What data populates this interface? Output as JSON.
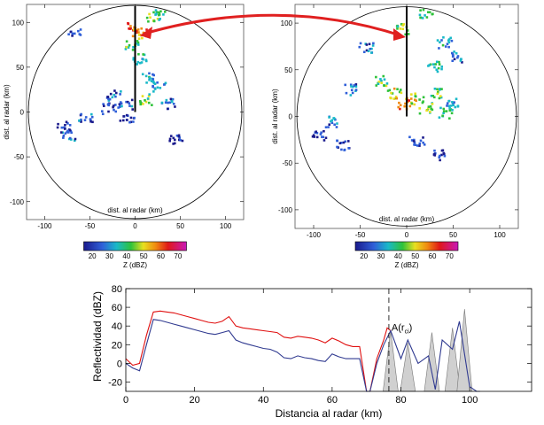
{
  "chart_data": [
    {
      "type": "heatmap",
      "panel": "ppi-left",
      "xlabel": "dist. al radar (km)",
      "ylabel": "dist. al radar (km)",
      "xlim": [
        -120,
        120
      ],
      "ylim": [
        -120,
        120
      ],
      "xticks": [
        "-100",
        "-50",
        "0",
        "50",
        "100"
      ],
      "yticks": [
        "-100",
        "-50",
        "0",
        "50",
        "100"
      ],
      "colorbar": {
        "label": "Z (dBZ)",
        "ticks": [
          "20",
          "30",
          "40",
          "50",
          "60",
          "70"
        ],
        "range": [
          15,
          75
        ]
      },
      "echoes": [
        {
          "x": -2,
          "y": 95,
          "z": 62
        },
        {
          "x": 4,
          "y": 88,
          "z": 55
        },
        {
          "x": 20,
          "y": 108,
          "z": 45
        },
        {
          "x": 28,
          "y": 115,
          "z": 40
        },
        {
          "x": -45,
          "y": 118,
          "z": 30
        },
        {
          "x": -68,
          "y": 92,
          "z": 28
        },
        {
          "x": -5,
          "y": 75,
          "z": 42
        },
        {
          "x": 5,
          "y": 60,
          "z": 38
        },
        {
          "x": -25,
          "y": 20,
          "z": 30
        },
        {
          "x": 15,
          "y": 40,
          "z": 35
        },
        {
          "x": 25,
          "y": 30,
          "z": 32
        },
        {
          "x": -12,
          "y": 10,
          "z": 28
        },
        {
          "x": 10,
          "y": 15,
          "z": 45
        },
        {
          "x": 35,
          "y": 10,
          "z": 30
        },
        {
          "x": -55,
          "y": -5,
          "z": 28
        },
        {
          "x": -80,
          "y": -15,
          "z": 25
        },
        {
          "x": -75,
          "y": -25,
          "z": 28
        },
        {
          "x": -10,
          "y": -5,
          "z": 25
        },
        {
          "x": 45,
          "y": -30,
          "z": 22
        },
        {
          "x": -30,
          "y": 5,
          "z": 26
        }
      ]
    },
    {
      "type": "heatmap",
      "panel": "ppi-right",
      "xlabel": "dist. al radar (km)",
      "ylabel": "dist. al radar (km)",
      "xlim": [
        -120,
        120
      ],
      "ylim": [
        -120,
        120
      ],
      "xticks": [
        "-100",
        "-50",
        "0",
        "50",
        "100"
      ],
      "yticks": [
        "-100",
        "-50",
        "0",
        "50",
        "100"
      ],
      "colorbar": {
        "label": "Z (dBZ)",
        "ticks": [
          "20",
          "30",
          "40",
          "50",
          "60",
          "70"
        ],
        "range": [
          15,
          75
        ]
      },
      "echoes": [
        {
          "x": 20,
          "y": 112,
          "z": 40
        },
        {
          "x": -5,
          "y": 95,
          "z": 45
        },
        {
          "x": 40,
          "y": 80,
          "z": 35
        },
        {
          "x": 55,
          "y": 65,
          "z": 30
        },
        {
          "x": -45,
          "y": 75,
          "z": 30
        },
        {
          "x": -30,
          "y": 40,
          "z": 42
        },
        {
          "x": -15,
          "y": 25,
          "z": 48
        },
        {
          "x": -5,
          "y": 15,
          "z": 55
        },
        {
          "x": 10,
          "y": 20,
          "z": 50
        },
        {
          "x": 20,
          "y": 10,
          "z": 46
        },
        {
          "x": 30,
          "y": 25,
          "z": 42
        },
        {
          "x": 40,
          "y": 5,
          "z": 40
        },
        {
          "x": 50,
          "y": 15,
          "z": 32
        },
        {
          "x": -60,
          "y": 30,
          "z": 30
        },
        {
          "x": -80,
          "y": -5,
          "z": 28
        },
        {
          "x": -95,
          "y": -20,
          "z": 26
        },
        {
          "x": -70,
          "y": -30,
          "z": 24
        },
        {
          "x": 10,
          "y": -25,
          "z": 25
        },
        {
          "x": 35,
          "y": -40,
          "z": 24
        },
        {
          "x": 30,
          "y": 55,
          "z": 38
        }
      ]
    },
    {
      "type": "line",
      "panel": "profile",
      "xlabel": "Distancia al radar (km)",
      "ylabel": "Reflectividad (dBZ)",
      "xlim": [
        0,
        118
      ],
      "ylim": [
        -30,
        80
      ],
      "xticks": [
        "0",
        "20",
        "40",
        "60",
        "80",
        "100"
      ],
      "yticks": [
        "-20",
        "0",
        "20",
        "40",
        "60",
        "80"
      ],
      "annotation": {
        "text": "A(r",
        "subscript": "ci",
        "suffix": ")",
        "x": 76.5
      },
      "series": [
        {
          "color": "#e01010",
          "x": [
            0,
            2,
            4,
            6,
            8,
            10,
            12,
            14,
            16,
            18,
            20,
            22,
            24,
            26,
            28,
            30,
            32,
            34,
            36,
            38,
            40,
            42,
            44,
            46,
            48,
            50,
            52,
            54,
            56,
            58,
            60,
            62,
            64,
            66,
            68,
            70,
            71,
            73,
            75,
            76,
            77
          ],
          "y": [
            5,
            -2,
            0,
            30,
            55,
            56,
            55,
            54,
            52,
            50,
            48,
            46,
            44,
            43,
            45,
            50,
            40,
            38,
            37,
            36,
            35,
            34,
            33,
            28,
            27,
            29,
            28,
            27,
            25,
            22,
            27,
            24,
            20,
            18,
            18,
            -30,
            -30,
            5,
            25,
            38,
            35
          ]
        },
        {
          "color": "#303a90",
          "x": [
            0,
            2,
            4,
            6,
            8,
            10,
            12,
            14,
            16,
            18,
            20,
            22,
            24,
            26,
            28,
            30,
            32,
            34,
            36,
            38,
            40,
            42,
            44,
            46,
            48,
            50,
            52,
            54,
            56,
            58,
            60,
            62,
            64,
            66,
            68,
            70,
            71,
            73,
            75,
            77,
            80,
            82,
            85,
            88,
            90,
            92,
            95,
            97,
            100,
            102,
            103
          ],
          "y": [
            0,
            -5,
            -8,
            20,
            47,
            46,
            44,
            42,
            40,
            38,
            36,
            34,
            32,
            31,
            33,
            35,
            25,
            22,
            20,
            18,
            16,
            15,
            12,
            6,
            5,
            8,
            6,
            5,
            3,
            2,
            10,
            7,
            5,
            5,
            5,
            -30,
            -30,
            0,
            20,
            35,
            5,
            25,
            0,
            8,
            -28,
            25,
            15,
            45,
            -25,
            -30,
            -30
          ]
        }
      ],
      "gray_peaks": [
        {
          "x": 77,
          "y": 35
        },
        {
          "x": 82,
          "y": 22
        },
        {
          "x": 89,
          "y": 33
        },
        {
          "x": 95,
          "y": 38
        },
        {
          "x": 98.5,
          "y": 58
        }
      ]
    }
  ]
}
